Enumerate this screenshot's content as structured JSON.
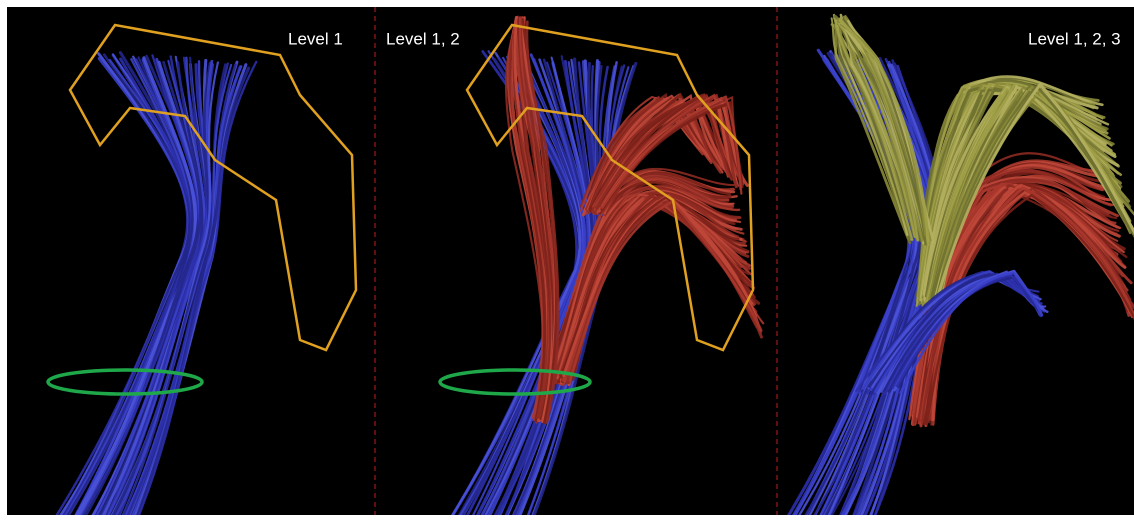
{
  "panels": [
    {
      "label": "Level 1"
    },
    {
      "label": "Level 1, 2"
    },
    {
      "label": "Level 1, 2, 3"
    }
  ]
}
